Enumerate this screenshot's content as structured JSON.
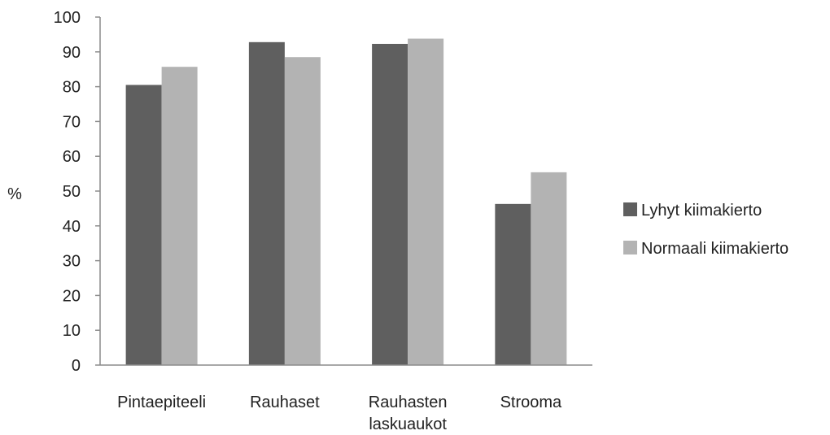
{
  "chart_data": {
    "type": "bar",
    "title": "",
    "xlabel": "",
    "ylabel": "%",
    "ylim": [
      0,
      100
    ],
    "yticks": [
      0,
      10,
      20,
      30,
      40,
      50,
      60,
      70,
      80,
      90,
      100
    ],
    "grid": false,
    "legend_position": "right",
    "categories": [
      [
        "Pintaepiteeli"
      ],
      [
        "Rauhaset"
      ],
      [
        "Rauhasten",
        "laskuaukot"
      ],
      [
        "Strooma"
      ]
    ],
    "series": [
      {
        "name": "Lyhyt kiimakierto",
        "color": "#5f5f5f",
        "values": [
          80.5,
          92.8,
          92.3,
          46.3
        ]
      },
      {
        "name": "Normaali kiimakierto",
        "color": "#b3b3b3",
        "values": [
          85.7,
          88.5,
          93.8,
          55.4
        ]
      }
    ]
  }
}
